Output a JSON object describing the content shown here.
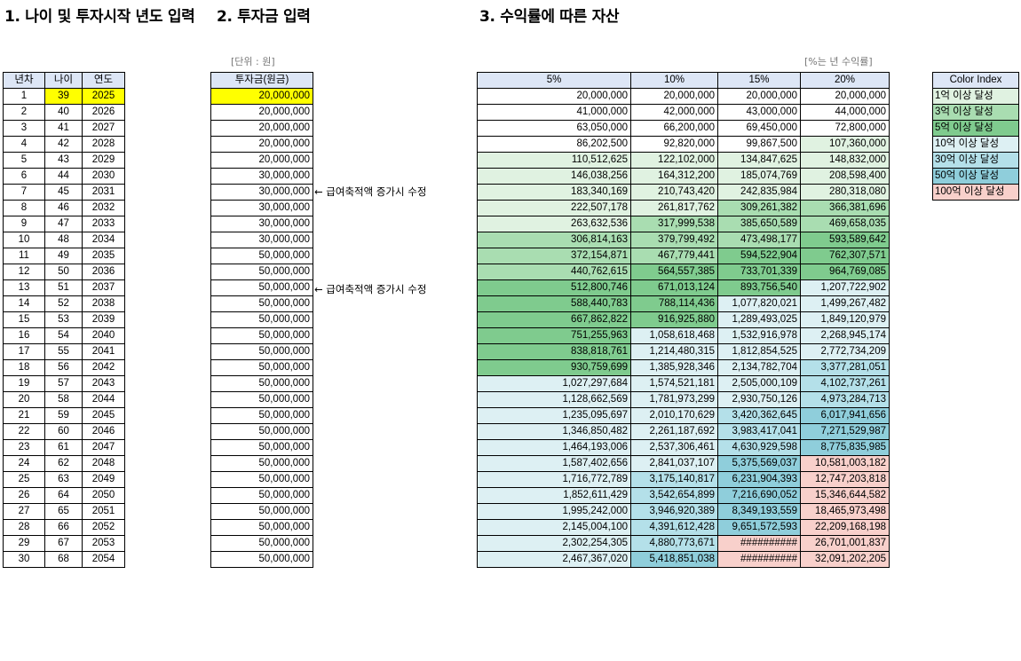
{
  "titles": {
    "t1": "1. 나이 및 투자시작 년도 입력",
    "t2": "2. 투자금 입력",
    "t3": "3. 수익률에 따른 자산"
  },
  "notes": {
    "unit": "[단위 : 원]",
    "rate": "[%는 년 수익률]",
    "change_label": "← 급여축적액 증가시 수정"
  },
  "table1": {
    "headers": [
      "년차",
      "나이",
      "연도"
    ],
    "rows": [
      [
        "1",
        "39",
        "2025"
      ],
      [
        "2",
        "40",
        "2026"
      ],
      [
        "3",
        "41",
        "2027"
      ],
      [
        "4",
        "42",
        "2028"
      ],
      [
        "5",
        "43",
        "2029"
      ],
      [
        "6",
        "44",
        "2030"
      ],
      [
        "7",
        "45",
        "2031"
      ],
      [
        "8",
        "46",
        "2032"
      ],
      [
        "9",
        "47",
        "2033"
      ],
      [
        "10",
        "48",
        "2034"
      ],
      [
        "11",
        "49",
        "2035"
      ],
      [
        "12",
        "50",
        "2036"
      ],
      [
        "13",
        "51",
        "2037"
      ],
      [
        "14",
        "52",
        "2038"
      ],
      [
        "15",
        "53",
        "2039"
      ],
      [
        "16",
        "54",
        "2040"
      ],
      [
        "17",
        "55",
        "2041"
      ],
      [
        "18",
        "56",
        "2042"
      ],
      [
        "19",
        "57",
        "2043"
      ],
      [
        "20",
        "58",
        "2044"
      ],
      [
        "21",
        "59",
        "2045"
      ],
      [
        "22",
        "60",
        "2046"
      ],
      [
        "23",
        "61",
        "2047"
      ],
      [
        "24",
        "62",
        "2048"
      ],
      [
        "25",
        "63",
        "2049"
      ],
      [
        "26",
        "64",
        "2050"
      ],
      [
        "27",
        "65",
        "2051"
      ],
      [
        "28",
        "66",
        "2052"
      ],
      [
        "29",
        "67",
        "2053"
      ],
      [
        "30",
        "68",
        "2054"
      ]
    ]
  },
  "table2": {
    "header": "투자금(원금)",
    "values": [
      "20,000,000",
      "20,000,000",
      "20,000,000",
      "20,000,000",
      "20,000,000",
      "30,000,000",
      "30,000,000",
      "30,000,000",
      "30,000,000",
      "30,000,000",
      "50,000,000",
      "50,000,000",
      "50,000,000",
      "50,000,000",
      "50,000,000",
      "50,000,000",
      "50,000,000",
      "50,000,000",
      "50,000,000",
      "50,000,000",
      "50,000,000",
      "50,000,000",
      "50,000,000",
      "50,000,000",
      "50,000,000",
      "50,000,000",
      "50,000,000",
      "50,000,000",
      "50,000,000",
      "50,000,000"
    ]
  },
  "table3": {
    "headers": [
      "5%",
      "10%",
      "15%",
      "20%"
    ],
    "rows": [
      [
        "20,000,000",
        "20,000,000",
        "20,000,000",
        "20,000,000"
      ],
      [
        "41,000,000",
        "42,000,000",
        "43,000,000",
        "44,000,000"
      ],
      [
        "63,050,000",
        "66,200,000",
        "69,450,000",
        "72,800,000"
      ],
      [
        "86,202,500",
        "92,820,000",
        "99,867,500",
        "107,360,000"
      ],
      [
        "110,512,625",
        "122,102,000",
        "134,847,625",
        "148,832,000"
      ],
      [
        "146,038,256",
        "164,312,200",
        "185,074,769",
        "208,598,400"
      ],
      [
        "183,340,169",
        "210,743,420",
        "242,835,984",
        "280,318,080"
      ],
      [
        "222,507,178",
        "261,817,762",
        "309,261,382",
        "366,381,696"
      ],
      [
        "263,632,536",
        "317,999,538",
        "385,650,589",
        "469,658,035"
      ],
      [
        "306,814,163",
        "379,799,492",
        "473,498,177",
        "593,589,642"
      ],
      [
        "372,154,871",
        "467,779,441",
        "594,522,904",
        "762,307,571"
      ],
      [
        "440,762,615",
        "564,557,385",
        "733,701,339",
        "964,769,085"
      ],
      [
        "512,800,746",
        "671,013,124",
        "893,756,540",
        "1,207,722,902"
      ],
      [
        "588,440,783",
        "788,114,436",
        "1,077,820,021",
        "1,499,267,482"
      ],
      [
        "667,862,822",
        "916,925,880",
        "1,289,493,025",
        "1,849,120,979"
      ],
      [
        "751,255,963",
        "1,058,618,468",
        "1,532,916,978",
        "2,268,945,174"
      ],
      [
        "838,818,761",
        "1,214,480,315",
        "1,812,854,525",
        "2,772,734,209"
      ],
      [
        "930,759,699",
        "1,385,928,346",
        "2,134,782,704",
        "3,377,281,051"
      ],
      [
        "1,027,297,684",
        "1,574,521,181",
        "2,505,000,109",
        "4,102,737,261"
      ],
      [
        "1,128,662,569",
        "1,781,973,299",
        "2,930,750,126",
        "4,973,284,713"
      ],
      [
        "1,235,095,697",
        "2,010,170,629",
        "3,420,362,645",
        "6,017,941,656"
      ],
      [
        "1,346,850,482",
        "2,261,187,692",
        "3,983,417,041",
        "7,271,529,987"
      ],
      [
        "1,464,193,006",
        "2,537,306,461",
        "4,630,929,598",
        "8,775,835,985"
      ],
      [
        "1,587,402,656",
        "2,841,037,107",
        "5,375,569,037",
        "10,581,003,182"
      ],
      [
        "1,716,772,789",
        "3,175,140,817",
        "6,231,904,393",
        "12,747,203,818"
      ],
      [
        "1,852,611,429",
        "3,542,654,899",
        "7,216,690,052",
        "15,346,644,582"
      ],
      [
        "1,995,242,000",
        "3,946,920,389",
        "8,349,193,559",
        "18,465,973,498"
      ],
      [
        "2,145,004,100",
        "4,391,612,428",
        "9,651,572,593",
        "22,209,168,198"
      ],
      [
        "2,302,254,305",
        "4,880,773,671",
        "##########",
        "26,701,001,837"
      ],
      [
        "2,467,367,020",
        "5,418,851,038",
        "##########",
        "32,091,202,205"
      ]
    ],
    "fills": [
      [
        "w",
        "w",
        "w",
        "w"
      ],
      [
        "w",
        "w",
        "w",
        "w"
      ],
      [
        "w",
        "w",
        "w",
        "w"
      ],
      [
        "w",
        "w",
        "w",
        "g1"
      ],
      [
        "g1",
        "g1",
        "g1",
        "g1"
      ],
      [
        "g1",
        "g1",
        "g1",
        "g1"
      ],
      [
        "g1",
        "g1",
        "g1",
        "g1"
      ],
      [
        "g1",
        "g1",
        "g2",
        "g2"
      ],
      [
        "g1",
        "g2",
        "g2",
        "g2"
      ],
      [
        "g2",
        "g2",
        "g2",
        "g3"
      ],
      [
        "g2",
        "g2",
        "g3",
        "g3"
      ],
      [
        "g2",
        "g3",
        "g3",
        "g3"
      ],
      [
        "g3",
        "g3",
        "g3",
        "b1"
      ],
      [
        "g3",
        "g3",
        "b1",
        "b1"
      ],
      [
        "g3",
        "g3",
        "b1",
        "b1"
      ],
      [
        "g3",
        "b1",
        "b1",
        "b1"
      ],
      [
        "g3",
        "b1",
        "b1",
        "b1"
      ],
      [
        "g3",
        "b1",
        "b1",
        "b2"
      ],
      [
        "b1",
        "b1",
        "b1",
        "b2"
      ],
      [
        "b1",
        "b1",
        "b1",
        "b2"
      ],
      [
        "b1",
        "b1",
        "b2",
        "b3"
      ],
      [
        "b1",
        "b1",
        "b2",
        "b3"
      ],
      [
        "b1",
        "b1",
        "b2",
        "b3"
      ],
      [
        "b1",
        "b1",
        "b3",
        "p"
      ],
      [
        "b1",
        "b2",
        "b3",
        "p"
      ],
      [
        "b1",
        "b2",
        "b3",
        "p"
      ],
      [
        "b1",
        "b2",
        "b3",
        "p"
      ],
      [
        "b1",
        "b2",
        "b3",
        "p"
      ],
      [
        "b1",
        "b2",
        "p",
        "p"
      ],
      [
        "b1",
        "b3",
        "p",
        "p"
      ]
    ]
  },
  "legend": {
    "header": "Color Index",
    "items": [
      {
        "label": "1억 이상 달성",
        "fill": "g1"
      },
      {
        "label": "3억 이상 달성",
        "fill": "g2"
      },
      {
        "label": "5억 이상 달성",
        "fill": "g3"
      },
      {
        "label": "10억 이상 달성",
        "fill": "b1"
      },
      {
        "label": "30억 이상 달성",
        "fill": "b2"
      },
      {
        "label": "50억 이상 달성",
        "fill": "b3"
      },
      {
        "label": "100억 이상 달성",
        "fill": "p"
      }
    ]
  },
  "colors": {
    "w": "#FFFFFF",
    "g1": "#E0F2E1",
    "g2": "#A9DDB1",
    "g3": "#7FCB8E",
    "b1": "#DDF0F3",
    "b2": "#B4E0E9",
    "b3": "#8FCEDB",
    "p": "#F8D0CB",
    "header": "#DDE6F6",
    "highlight": "#FFFF00"
  }
}
